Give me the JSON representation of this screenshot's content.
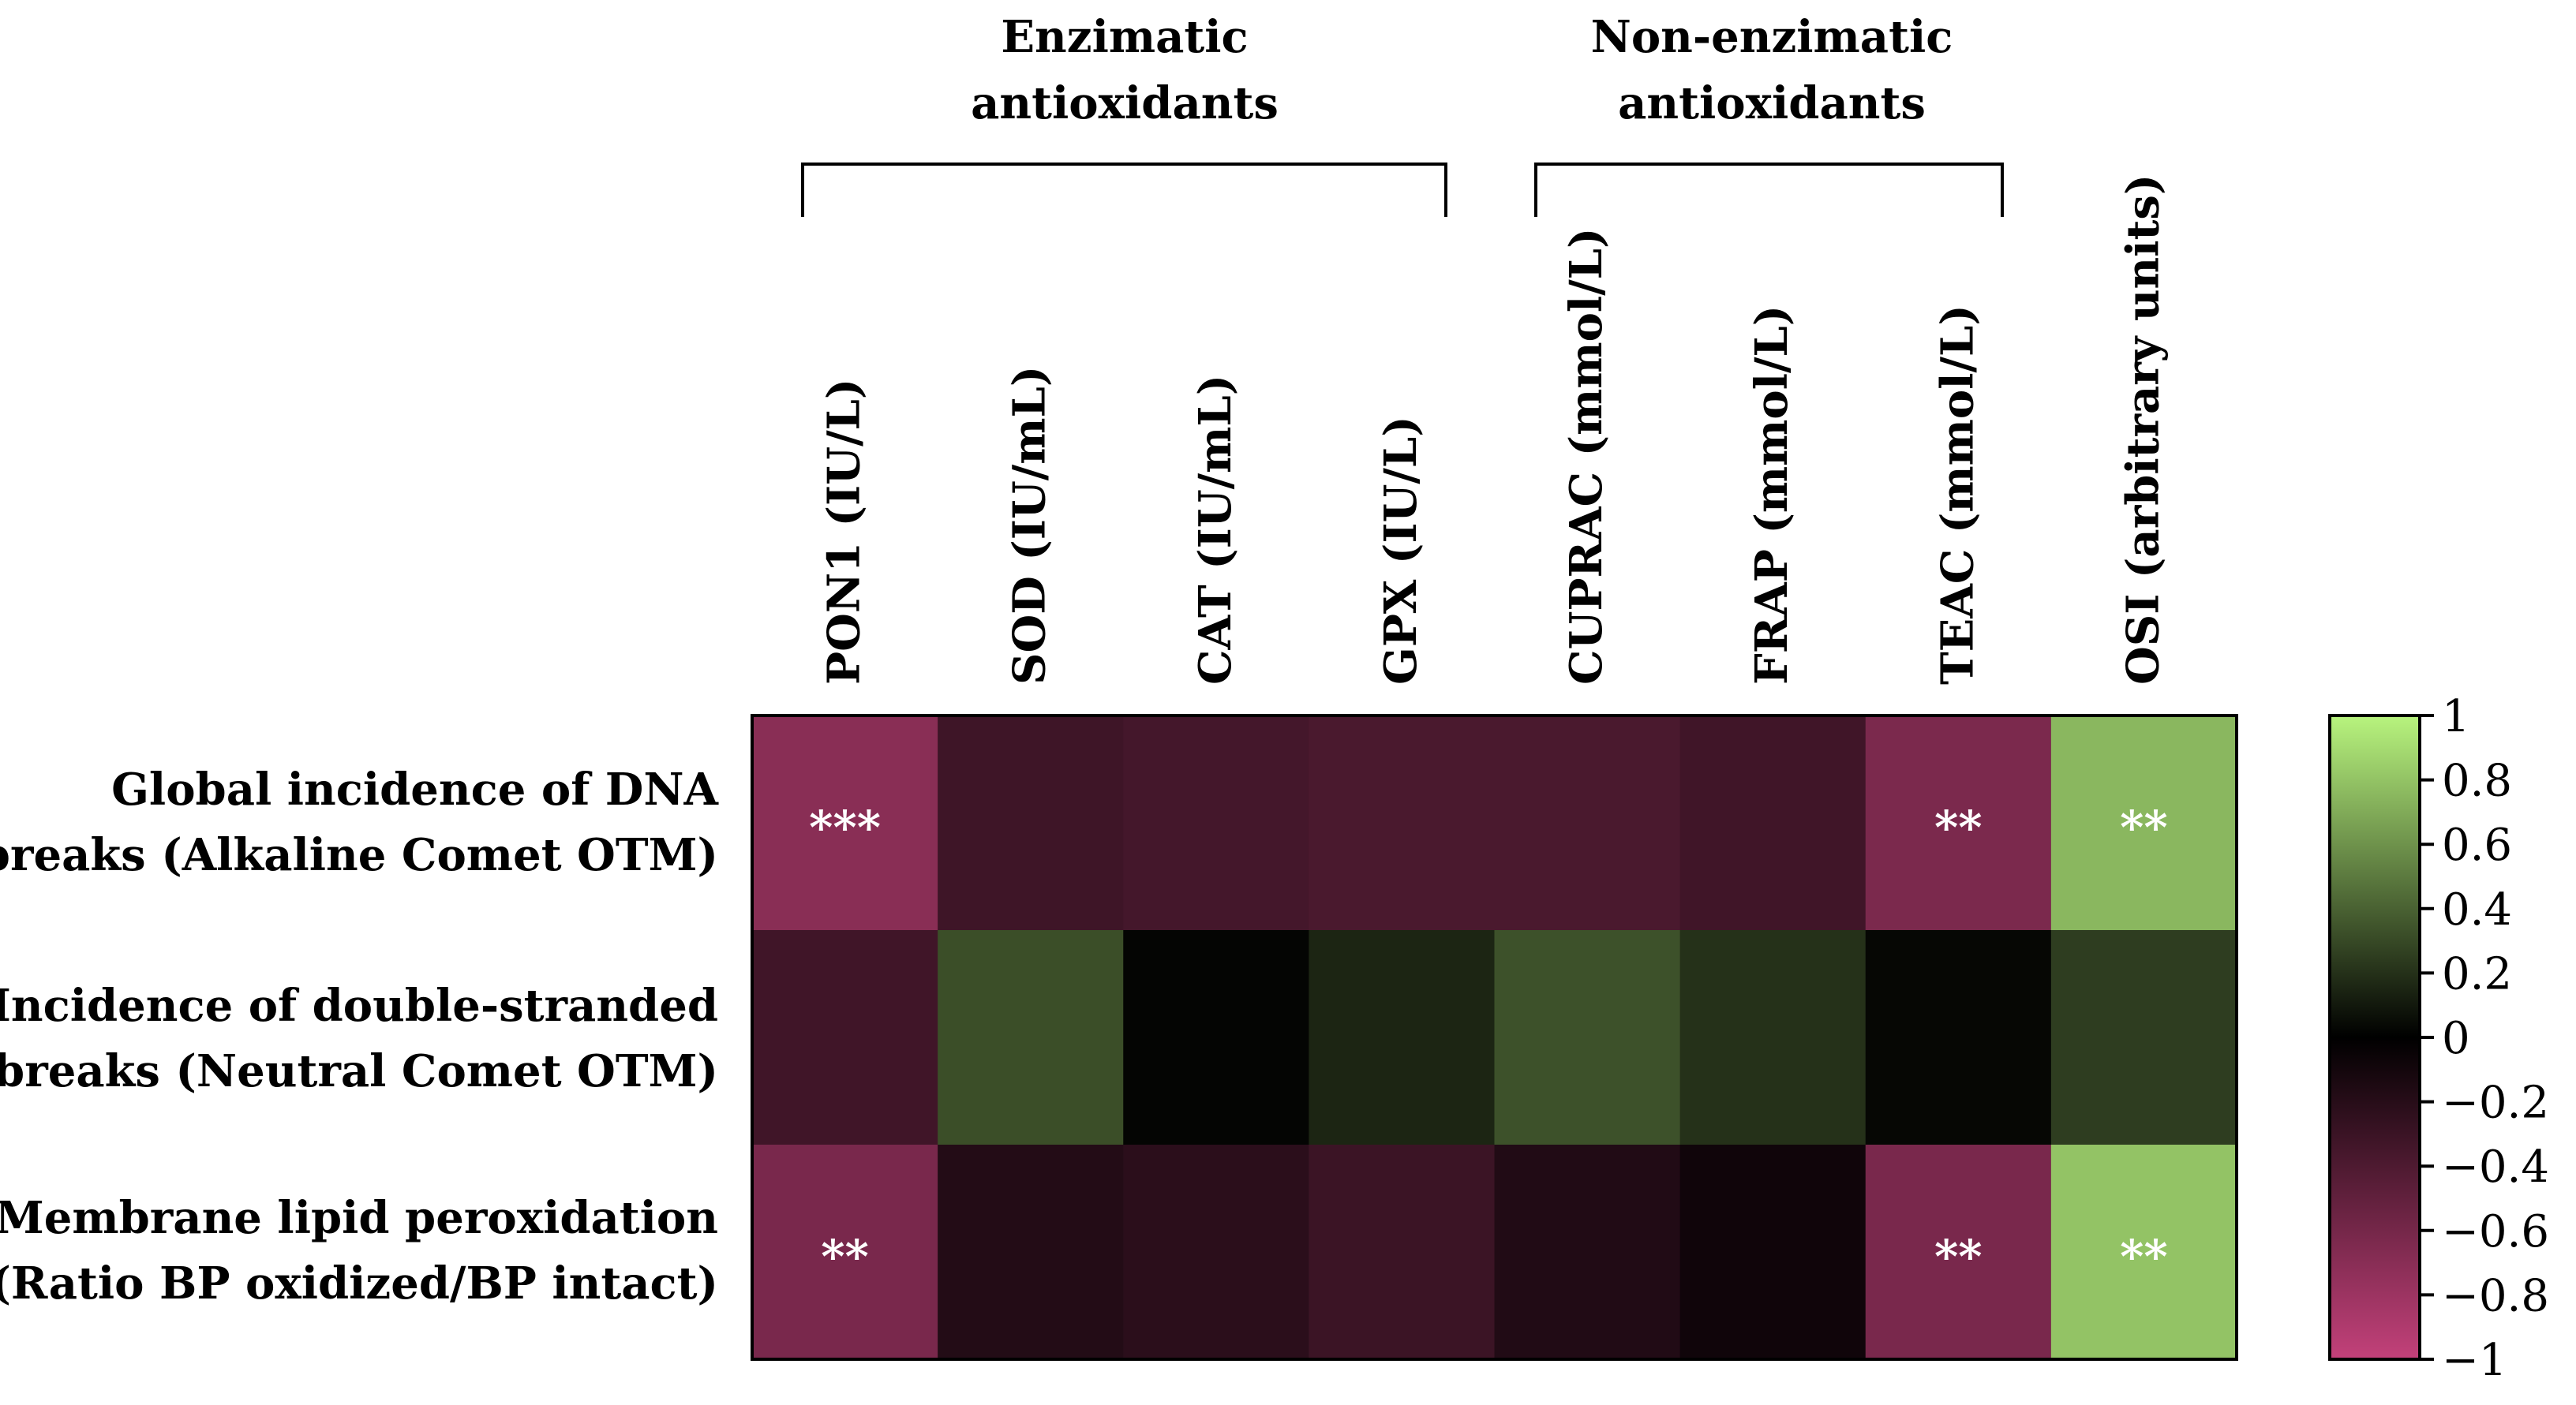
{
  "chart_data": {
    "type": "heatmap",
    "groups": [
      {
        "label_lines": [
          "Enzimatic",
          "antioxidants"
        ]
      },
      {
        "label_lines": [
          "Non-enzimatic",
          "antioxidants"
        ]
      }
    ],
    "columns": [
      "PON1 (IU/L)",
      "SOD (IU/mL)",
      "CAT (IU/mL)",
      "GPX (IU/L)",
      "CUPRAC (mmol/L)",
      "FRAP (mmol/L)",
      "TEAC (mmol/L)",
      "OSI (arbitrary units)"
    ],
    "rows": [
      {
        "label_lines": [
          "Global incidence of DNA",
          "breaks (Alkaline Comet OTM)"
        ]
      },
      {
        "label_lines": [
          "Incidence of double-stranded",
          "breaks (Neutral Comet OTM)"
        ]
      },
      {
        "label_lines": [
          "Membrane lipid peroxidation",
          "(Ratio BP oxidized/BP intact)"
        ]
      }
    ],
    "values": [
      [
        -0.7,
        -0.32,
        -0.35,
        -0.38,
        -0.38,
        -0.33,
        -0.63,
        0.75
      ],
      [
        -0.33,
        0.32,
        0.02,
        0.15,
        0.33,
        0.2,
        0.03,
        0.25
      ],
      [
        -0.62,
        -0.18,
        -0.22,
        -0.3,
        -0.17,
        -0.08,
        -0.62,
        0.8
      ]
    ],
    "annotations": [
      [
        "***",
        "",
        "",
        "",
        "",
        "",
        "**",
        "**"
      ],
      [
        "",
        "",
        "",
        "",
        "",
        "",
        "",
        ""
      ],
      [
        "**",
        "",
        "",
        "",
        "",
        "",
        "**",
        "**"
      ]
    ],
    "colorbar": {
      "min": -1,
      "max": 1,
      "ticks": [
        1,
        0.8,
        0.6,
        0.4,
        0.2,
        0,
        -0.2,
        -0.4,
        -0.6,
        -0.8,
        -1
      ],
      "tick_labels": [
        "1",
        "0.8",
        "0.6",
        "0.4",
        "0.2",
        "0",
        "−0.2",
        "−0.4",
        "−0.6",
        "−0.8",
        "−1"
      ]
    },
    "colors": {
      "negative_end": "#C3417A",
      "zero": "#000000",
      "positive_end": "#B8F47E"
    }
  }
}
